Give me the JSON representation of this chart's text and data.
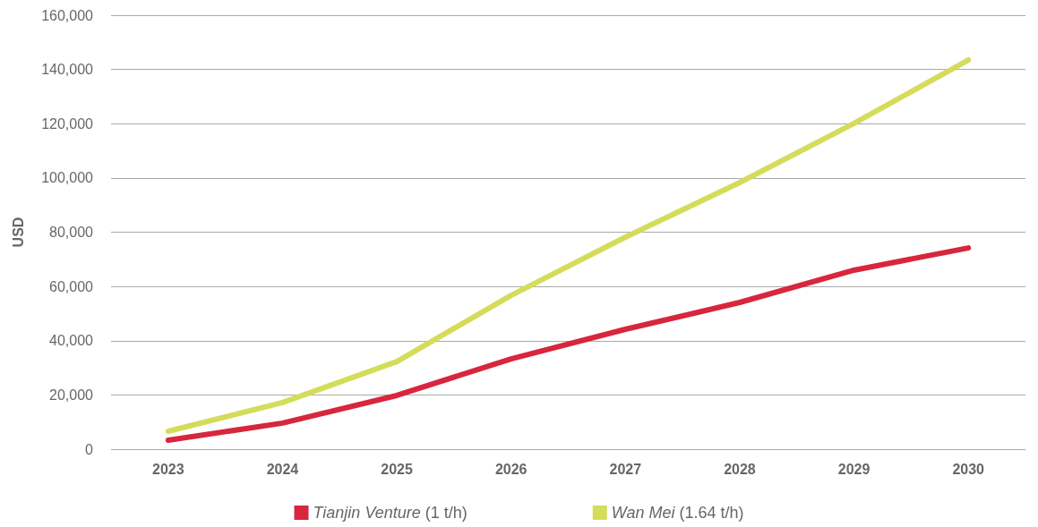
{
  "chart_data": {
    "type": "line",
    "ylabel": "USD",
    "categories": [
      "2023",
      "2024",
      "2025",
      "2026",
      "2027",
      "2028",
      "2029",
      "2030"
    ],
    "series": [
      {
        "name": "Tianjin Venture (1 t/h)",
        "color": "#d7263d",
        "values": [
          3300,
          9600,
          19800,
          33300,
          44200,
          54100,
          66000,
          74200
        ]
      },
      {
        "name": "Wan Mei (1.64 t/h)",
        "color": "#d4dc5a",
        "values": [
          6600,
          17200,
          32300,
          56700,
          78200,
          98300,
          120100,
          143500
        ]
      }
    ],
    "ylim": [
      0,
      160000
    ],
    "yticks": [
      0,
      {
        "value": 20000,
        "label": "20,000"
      },
      {
        "value": 40000,
        "label": "40,000"
      },
      {
        "value": 60000,
        "label": "60,000"
      },
      {
        "value": 80000,
        "label": "80,000"
      },
      {
        "value": 100000,
        "label": "100,000"
      },
      {
        "value": 120000,
        "label": "120,000"
      },
      {
        "value": 140000,
        "label": "140,000"
      },
      {
        "value": 160000,
        "label": "160,000"
      }
    ],
    "grid": "y",
    "legend": "bottom",
    "marker": "none",
    "line_style": "solid"
  }
}
